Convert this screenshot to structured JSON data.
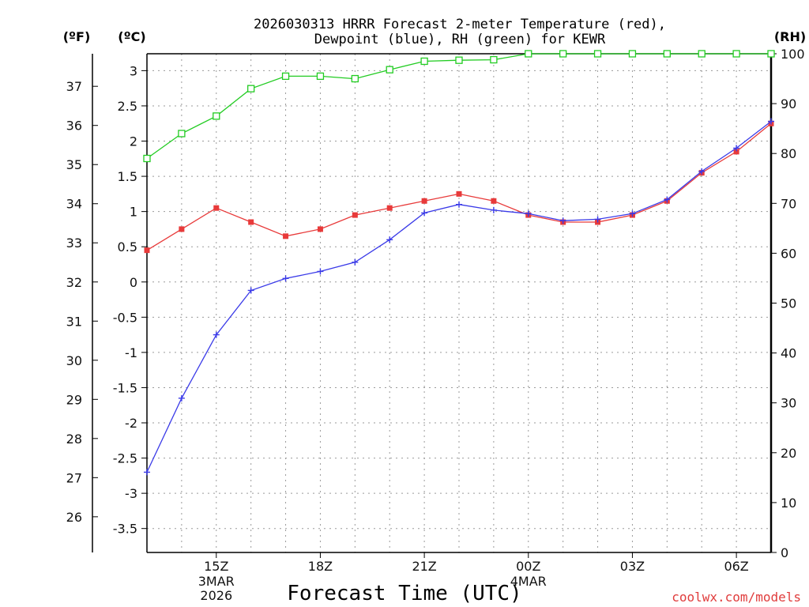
{
  "chart_data": {
    "type": "line",
    "title_lines": [
      "2026030313 HRRR Forecast 2-meter Temperature (red),",
      "Dewpoint (blue), RH (green) for KEWR"
    ],
    "xlabel": "Forecast Time (UTC)",
    "credit": "coolwx.com/models",
    "units": {
      "fahrenheit": "(ºF)",
      "celsius": "(ºC)",
      "rh": "(RH)"
    },
    "x_hours": [
      13,
      14,
      15,
      16,
      17,
      18,
      19,
      20,
      21,
      22,
      23,
      24,
      25,
      26,
      27,
      28,
      29,
      30,
      31
    ],
    "xlim": [
      13,
      31
    ],
    "x_ticks": [
      {
        "hour": 15,
        "label": "15Z",
        "sub": [
          "3MAR",
          "2026"
        ]
      },
      {
        "hour": 18,
        "label": "18Z",
        "sub": []
      },
      {
        "hour": 21,
        "label": "21Z",
        "sub": []
      },
      {
        "hour": 24,
        "label": "00Z",
        "sub": [
          "4MAR"
        ]
      },
      {
        "hour": 27,
        "label": "03Z",
        "sub": []
      },
      {
        "hour": 30,
        "label": "06Z",
        "sub": []
      }
    ],
    "celsius_axis": {
      "range": [
        -3.84,
        3.24
      ],
      "ticks": [
        -3.5,
        -3,
        -2.5,
        -2,
        -1.5,
        -1,
        -0.5,
        0,
        0.5,
        1,
        1.5,
        2,
        2.5,
        3
      ],
      "tick_labels": [
        "-3.5",
        "-3",
        "-2.5",
        "-2",
        "-1.5",
        "-1",
        "-0.5",
        "0",
        "0.5",
        "1",
        "1.5",
        "2",
        "2.5",
        "3"
      ]
    },
    "fahrenheit_axis": {
      "ticks": [
        26,
        27,
        28,
        29,
        30,
        31,
        32,
        33,
        34,
        35,
        36,
        37
      ],
      "tick_labels": [
        "26",
        "27",
        "28",
        "29",
        "30",
        "31",
        "32",
        "33",
        "34",
        "35",
        "36",
        "37"
      ]
    },
    "rh_axis": {
      "range": [
        0,
        100
      ],
      "ticks": [
        0,
        10,
        20,
        30,
        40,
        50,
        60,
        70,
        80,
        90,
        100
      ],
      "tick_labels": [
        "0",
        "10",
        "20",
        "30",
        "40",
        "50",
        "60",
        "70",
        "80",
        "90",
        "100"
      ]
    },
    "series": [
      {
        "name": "Temperature",
        "color": "#e83a3a",
        "axis": "celsius",
        "marker": "filled-square",
        "values": [
          0.45,
          0.75,
          1.05,
          0.85,
          0.65,
          0.75,
          0.95,
          1.05,
          1.15,
          1.25,
          1.15,
          0.95,
          0.85,
          0.85,
          0.95,
          1.15,
          1.55,
          1.85,
          2.25
        ]
      },
      {
        "name": "Dewpoint",
        "color": "#3a3ae8",
        "axis": "celsius",
        "marker": "plus",
        "values": [
          -2.7,
          -1.65,
          -0.75,
          -0.12,
          0.05,
          0.15,
          0.28,
          0.6,
          0.98,
          1.1,
          1.02,
          0.97,
          0.87,
          0.89,
          0.97,
          1.17,
          1.57,
          1.9,
          2.28
        ]
      },
      {
        "name": "RH",
        "color": "#22cc22",
        "axis": "rh",
        "marker": "open-square",
        "values": [
          79,
          84,
          87.5,
          93,
          95.5,
          95.5,
          95,
          96.8,
          98.5,
          98.7,
          98.8,
          100,
          100,
          100,
          100,
          100,
          100,
          100,
          100
        ]
      }
    ]
  }
}
